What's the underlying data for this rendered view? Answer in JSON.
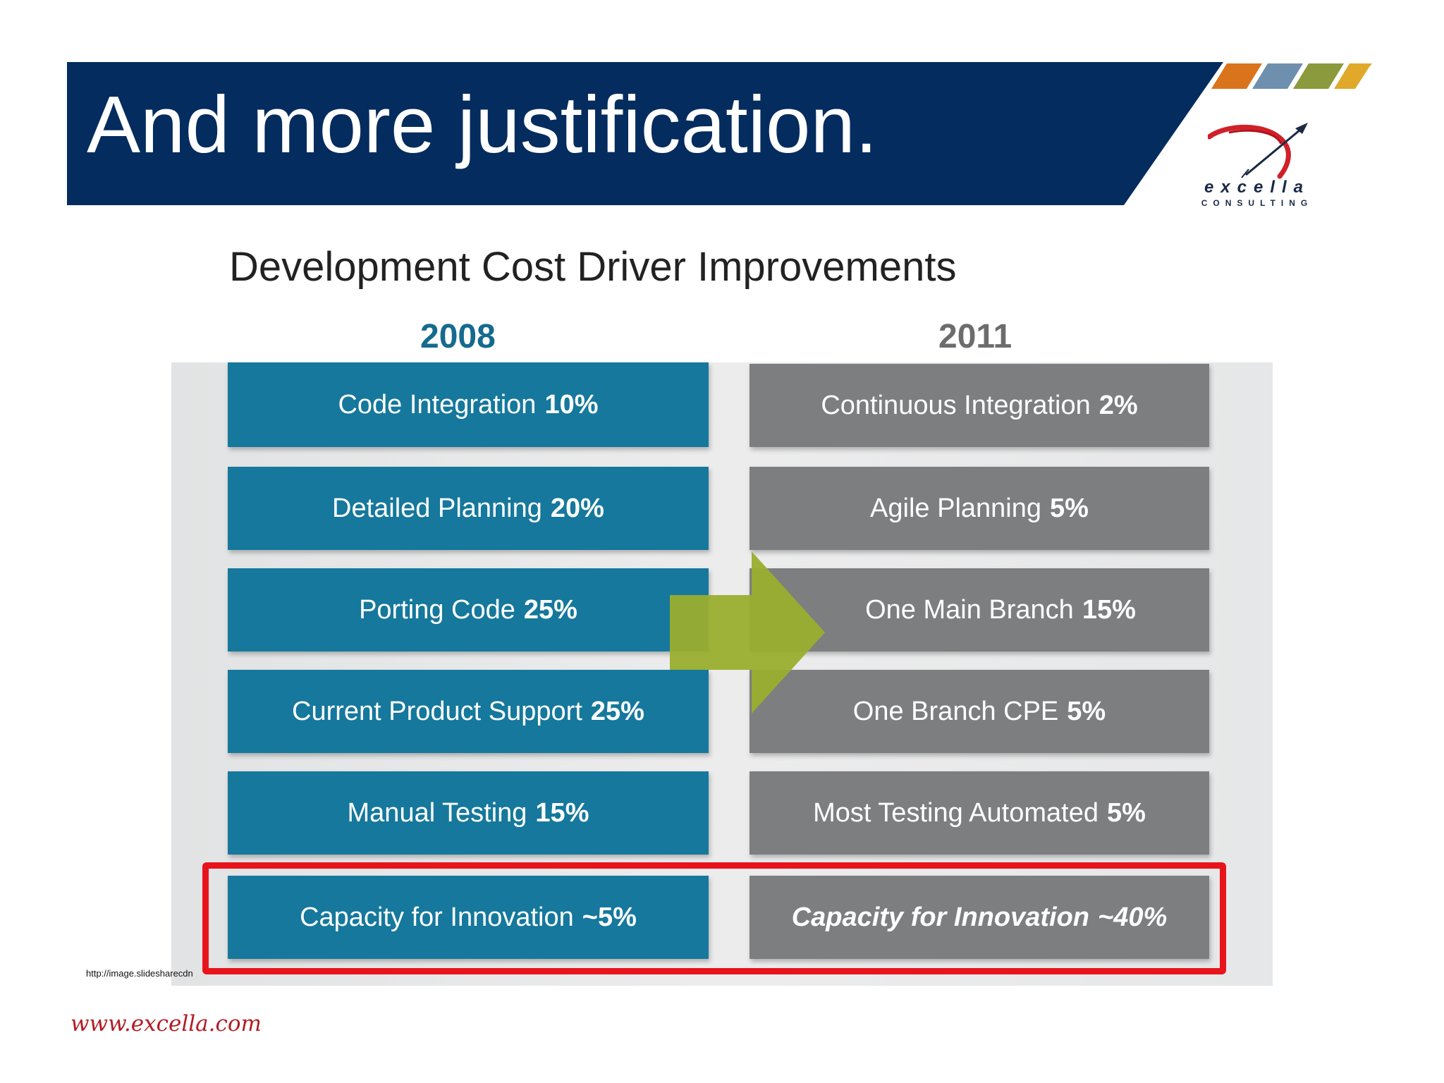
{
  "slide": {
    "title": "And more justification.",
    "subtitle": "Development Cost Driver Improvements",
    "source_url": "http://image.slidesharecdn",
    "footer_url": "www.excella.com"
  },
  "brand": {
    "logo_name": "excella",
    "logo_tagline": "CONSULTING",
    "stripe_colors": [
      "#d9741c",
      "#6e8fae",
      "#8a9a3c",
      "#e0a92a"
    ],
    "title_band_color": "#042c5e"
  },
  "columns": {
    "left_year": "2008",
    "right_year": "2011"
  },
  "rows": [
    {
      "before_label": "Code Integration",
      "before_value": "10%",
      "after_label": "Continuous Integration",
      "after_value": "2%"
    },
    {
      "before_label": "Detailed Planning",
      "before_value": "20%",
      "after_label": "Agile Planning",
      "after_value": "5%"
    },
    {
      "before_label": "Porting Code",
      "before_value": "25%",
      "after_label": "One Main Branch",
      "after_value": "15%"
    },
    {
      "before_label": "Current Product Support",
      "before_value": "25%",
      "after_label": "One Branch CPE",
      "after_value": "5%"
    },
    {
      "before_label": "Manual Testing",
      "before_value": "15%",
      "after_label": "Most Testing Automated",
      "after_value": "5%"
    },
    {
      "before_label": "Capacity for Innovation",
      "before_value": "~5%",
      "after_label": "Capacity for Innovation",
      "after_value": "~40%"
    }
  ],
  "colors": {
    "before_box": "#15789c",
    "after_box": "#7d7e80",
    "arrow": "#9aae2e",
    "highlight": "#e8141c"
  }
}
